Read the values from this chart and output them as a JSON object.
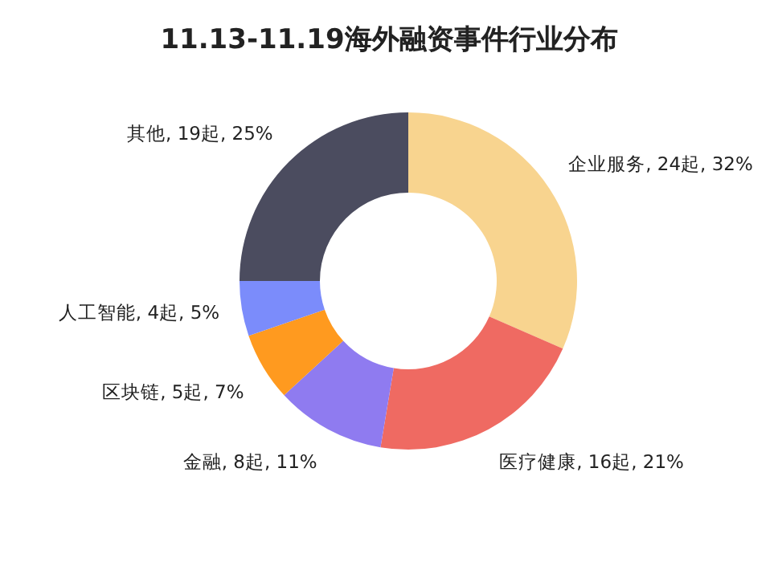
{
  "chart_data": {
    "type": "donut",
    "title": "11.13-11.19海外融资事件行业分布",
    "categories": [
      "企业服务",
      "医疗健康",
      "金融",
      "区块链",
      "人工智能",
      "其他"
    ],
    "values": [
      24,
      16,
      8,
      5,
      4,
      19
    ],
    "value_labels": [
      "24起, 32%",
      "16起, 21%",
      "8起, 11%",
      "5起, 7%",
      "4起, 5%",
      "19起, 25%"
    ],
    "colors": [
      "#f8d48f",
      "#ef6a62",
      "#8f7bf0",
      "#ff9a1f",
      "#7b8cfb",
      "#4b4c5f"
    ],
    "legend": false
  }
}
